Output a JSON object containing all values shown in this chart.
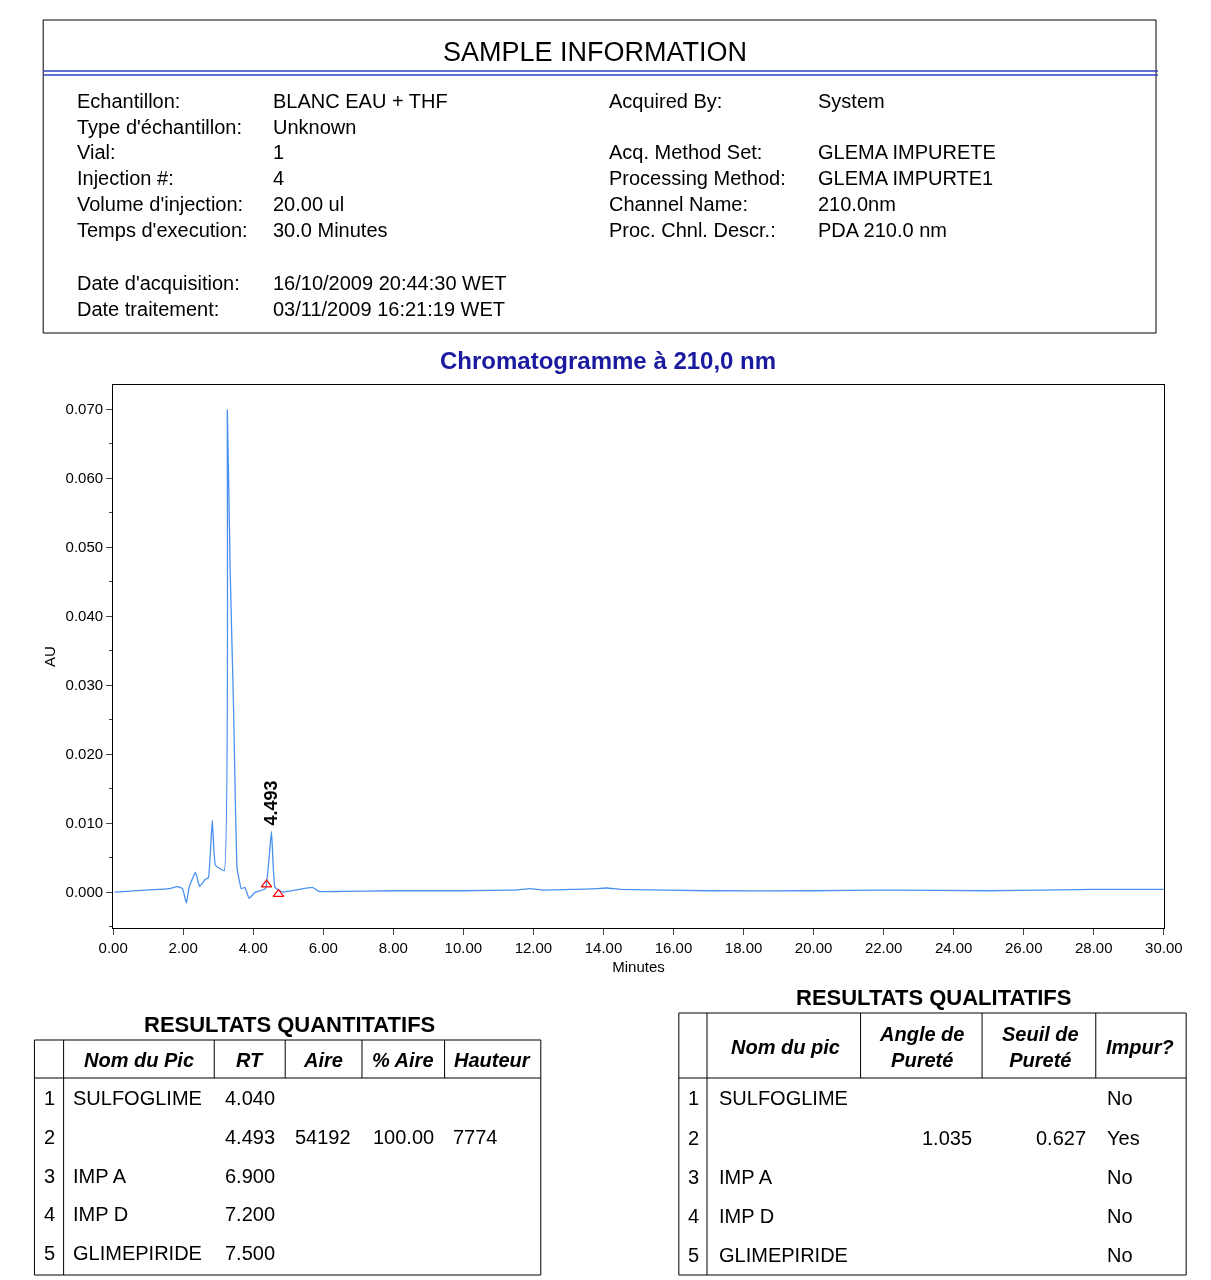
{
  "chart_data": {
    "type": "line",
    "title": "Chromatogramme à 210,0 nm",
    "xlabel": "Minutes",
    "ylabel": "AU",
    "xlim": [
      0,
      30
    ],
    "ylim": [
      -0.0052,
      0.0735
    ],
    "xticks": [
      {
        "value": 0,
        "label": "0.00"
      },
      {
        "value": 2,
        "label": "2.00"
      },
      {
        "value": 4,
        "label": "4.00"
      },
      {
        "value": 6,
        "label": "6.00"
      },
      {
        "value": 8,
        "label": "8.00"
      },
      {
        "value": 10,
        "label": "10.00"
      },
      {
        "value": 12,
        "label": "12.00"
      },
      {
        "value": 14,
        "label": "14.00"
      },
      {
        "value": 16,
        "label": "16.00"
      },
      {
        "value": 18,
        "label": "18.00"
      },
      {
        "value": 20,
        "label": "20.00"
      },
      {
        "value": 22,
        "label": "22.00"
      },
      {
        "value": 24,
        "label": "24.00"
      },
      {
        "value": 26,
        "label": "26.00"
      },
      {
        "value": 28,
        "label": "28.00"
      },
      {
        "value": 30,
        "label": "30.00"
      }
    ],
    "yticks": [
      {
        "value": 0,
        "label": "0.000"
      },
      {
        "value": 0.01,
        "label": "0.010"
      },
      {
        "value": 0.02,
        "label": "0.020"
      },
      {
        "value": 0.03,
        "label": "0.030"
      },
      {
        "value": 0.04,
        "label": "0.040"
      },
      {
        "value": 0.05,
        "label": "0.050"
      },
      {
        "value": 0.06,
        "label": "0.060"
      },
      {
        "value": 0.07,
        "label": "0.070"
      }
    ],
    "grid": false,
    "legend": false,
    "marker": "none",
    "line_style": "solid",
    "series": [
      {
        "color": "#4a90f0",
        "x": [
          0.04,
          1.58,
          1.83,
          1.98,
          2.09,
          2.17,
          2.35,
          2.47,
          2.62,
          2.72,
          2.83,
          2.92,
          3.17,
          3.26,
          3.34,
          3.44,
          3.54,
          3.66,
          3.76,
          3.88,
          4.06,
          4.35,
          4.52,
          4.62,
          4.85,
          5.69,
          5.88,
          6.5,
          8,
          10,
          11.5,
          11.9,
          12.3,
          13.8,
          14.1,
          14.5,
          17,
          20,
          22,
          25,
          28,
          30
        ],
        "values": [
          0.0,
          0.0005,
          0.0008,
          0.0005,
          -0.0016,
          0.0007,
          0.0029,
          0.0008,
          0.0018,
          0.0021,
          0.0104,
          0.0039,
          0.0031,
          0.0699,
          0.0469,
          0.0262,
          0.0034,
          0.0005,
          0.0007,
          -0.0009,
          0.0,
          0.0005,
          0.0088,
          0.0007,
          0.0,
          0.0007,
          0.0001,
          0.0001,
          0.0002,
          0.0002,
          0.0003,
          0.0005,
          0.0003,
          0.0005,
          0.0006,
          0.0004,
          0.0002,
          0.0002,
          0.0003,
          0.0002,
          0.0004,
          0.0004
        ]
      },
      {
        "type": "scatter",
        "color": "#ff0000",
        "marker": "triangle",
        "x": [
          4.38,
          4.72
        ],
        "values": [
          0.0011,
          -0.0003
        ]
      }
    ],
    "annotations": [
      {
        "text": "4.493",
        "x": 4.493,
        "y": 0.0088
      },
      "SAMPLE INFORMATION",
      "Echantillon:",
      "BLANC EAU + THF",
      "Type d'échantillon:",
      "Unknown",
      "Vial:",
      "1",
      "Injection #:",
      "4",
      "Volume d'injection:",
      "20.00 ul",
      "Temps d'execution:",
      "30.0 Minutes",
      "Date d'acquisition:",
      "16/10/2009 20:44:30 WET",
      "Date traitement:",
      "03/11/2009 16:21:19 WET",
      "Acquired By:",
      "System",
      "Acq. Method Set:",
      "GLEMA IMPURETE",
      "Processing Method:",
      "GLEMA IMPURTE1",
      "Channel Name:",
      "210.0nm",
      "Proc. Chnl. Descr.:",
      "PDA 210.0 nm",
      "RESULTATS QUANTITATIFS",
      "Nom du Pic",
      "RT",
      "Aire",
      "% Aire",
      "Hauteur",
      "1",
      "SULFOGLIME",
      "4.040",
      "2",
      "4.493",
      "54192",
      "100.00",
      "7774",
      "3",
      "IMP A",
      "6.900",
      "4",
      "IMP D",
      "7.200",
      "5",
      "GLIMEPIRIDE",
      "7.500",
      "RESULTATS QUALITATIFS",
      "Nom du pic",
      "Angle de Pureté",
      "Seuil de Pureté",
      "Impur?",
      "1",
      "SULFOGLIME",
      "No",
      "2",
      "1.035",
      "0.627",
      "Yes",
      "3",
      "IMP A",
      "No",
      "4",
      "IMP D",
      "No",
      "5",
      "GLIMEPIRIDE",
      "No"
    ]
  }
}
